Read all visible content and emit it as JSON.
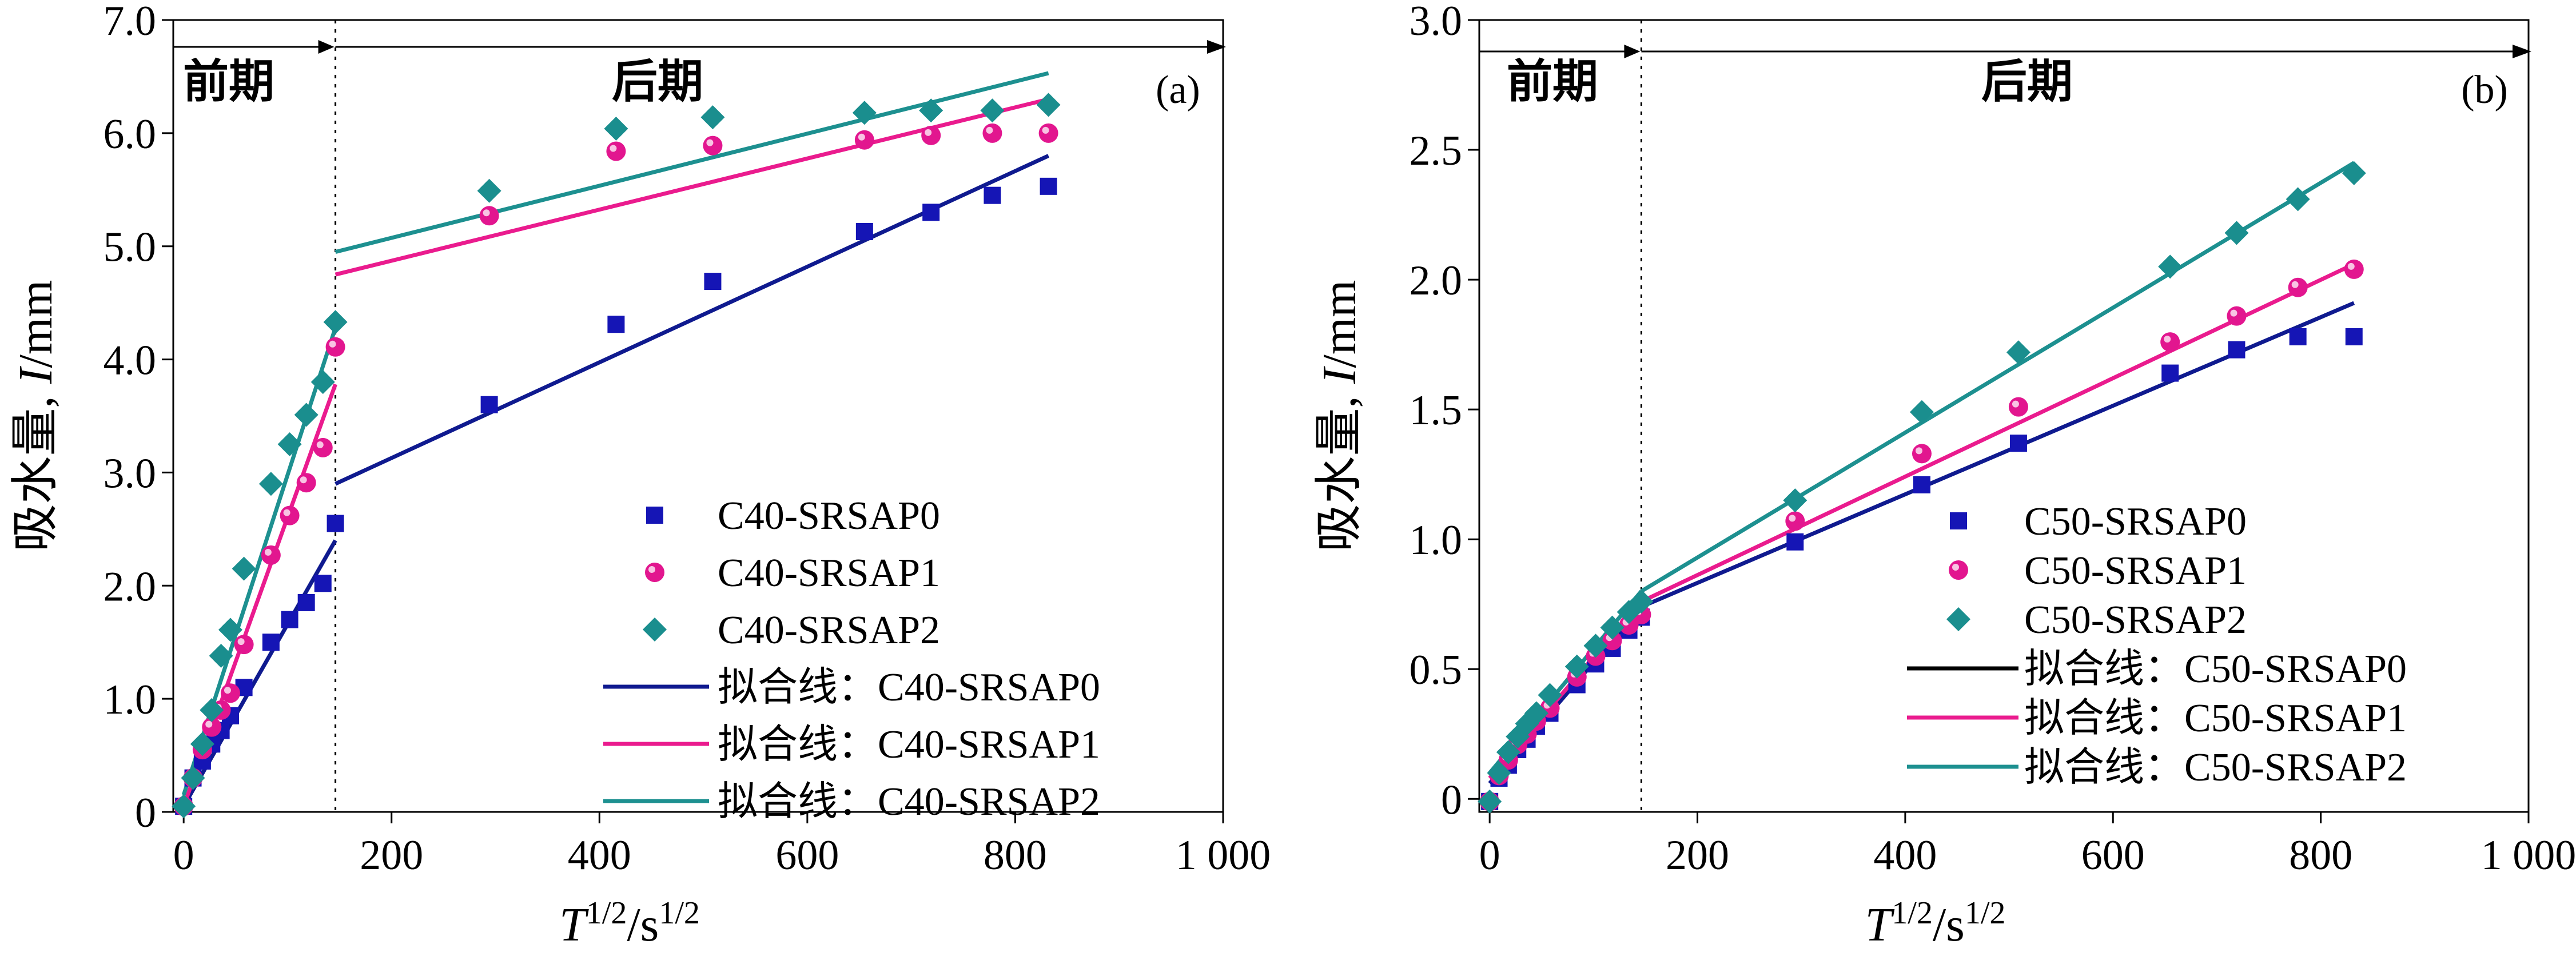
{
  "chart_data": [
    {
      "type": "scatter",
      "panel_label": "(a)",
      "xlabel": {
        "T": "T",
        "exp1": "1/2",
        "slash_s": "/s",
        "exp2": "1/2"
      },
      "ylabel": {
        "prefix": "吸水量, ",
        "var": "I",
        "unit": "/mm"
      },
      "xlim": [
        -10,
        1000
      ],
      "ylim": [
        0,
        7.0
      ],
      "xticks": [
        0,
        200,
        400,
        600,
        800,
        1000
      ],
      "xtick_labels": [
        "0",
        "200",
        "400",
        "600",
        "800",
        "1 000"
      ],
      "yticks": [
        0,
        1,
        2,
        3,
        4,
        5,
        6,
        7
      ],
      "ytick_labels": [
        "0",
        "1.0",
        "2.0",
        "3.0",
        "4.0",
        "5.0",
        "6.0",
        "7.0"
      ],
      "divider_x": 146,
      "phase_labels": {
        "early": "前期",
        "late": "后期"
      },
      "series": [
        {
          "name": "C40-SRSAP0",
          "marker": "square",
          "color": "#1515b5",
          "x": [
            0,
            9,
            18,
            27,
            36,
            45,
            58,
            84,
            102,
            118,
            134,
            146,
            294,
            416,
            509,
            655,
            719,
            778,
            832
          ],
          "y": [
            0.05,
            0.3,
            0.45,
            0.6,
            0.72,
            0.85,
            1.1,
            1.5,
            1.7,
            1.85,
            2.02,
            2.55,
            3.6,
            4.31,
            4.69,
            5.13,
            5.3,
            5.45,
            5.53
          ]
        },
        {
          "name": "C40-SRSAP1",
          "marker": "circle",
          "color": "#e2168f",
          "x": [
            0,
            9,
            18,
            27,
            36,
            45,
            58,
            84,
            102,
            118,
            134,
            146,
            294,
            416,
            509,
            655,
            719,
            778,
            832
          ],
          "y": [
            0.05,
            0.3,
            0.55,
            0.75,
            0.9,
            1.05,
            1.48,
            2.27,
            2.62,
            2.91,
            3.22,
            4.11,
            5.27,
            5.84,
            5.89,
            5.94,
            5.98,
            6.0,
            6.0
          ]
        },
        {
          "name": "C40-SRSAP2",
          "marker": "diamond",
          "color": "#1a8e8e",
          "x": [
            0,
            9,
            18,
            27,
            36,
            45,
            58,
            84,
            102,
            118,
            134,
            146,
            294,
            416,
            509,
            655,
            719,
            778,
            832
          ],
          "y": [
            0.05,
            0.3,
            0.6,
            0.9,
            1.38,
            1.61,
            2.15,
            2.9,
            3.25,
            3.51,
            3.8,
            4.33,
            5.49,
            6.04,
            6.14,
            6.18,
            6.2,
            6.2,
            6.25
          ]
        }
      ],
      "fit_lines": [
        {
          "name": "拟合线：C40-SRSAP0",
          "color": "#0f1a8f",
          "segments": [
            {
              "x": [
                0,
                146
              ],
              "y": [
                0.05,
                2.4
              ]
            },
            {
              "x": [
                146,
                832
              ],
              "y": [
                2.9,
                5.8
              ]
            }
          ]
        },
        {
          "name": "拟合线：C40-SRSAP1",
          "color": "#ea1b8e",
          "segments": [
            {
              "x": [
                0,
                146
              ],
              "y": [
                0.05,
                3.78
              ]
            },
            {
              "x": [
                146,
                832
              ],
              "y": [
                4.75,
                6.3
              ]
            }
          ]
        },
        {
          "name": "拟合线：C40-SRSAP2",
          "color": "#1d9090",
          "segments": [
            {
              "x": [
                0,
                146
              ],
              "y": [
                0.15,
                4.28
              ]
            },
            {
              "x": [
                146,
                832
              ],
              "y": [
                4.95,
                6.53
              ]
            }
          ]
        }
      ],
      "legend_position": "bottom-right"
    },
    {
      "type": "scatter",
      "panel_label": "(b)",
      "xlabel": {
        "T": "T",
        "exp1": "1/2",
        "slash_s": "/s",
        "exp2": "1/2"
      },
      "ylabel": {
        "prefix": "吸水量, ",
        "var": "I",
        "unit": "/mm"
      },
      "xlim": [
        -10,
        1000
      ],
      "ylim": [
        -0.05,
        3.0
      ],
      "xticks": [
        0,
        200,
        400,
        600,
        800,
        1000
      ],
      "xtick_labels": [
        "0",
        "200",
        "400",
        "600",
        "800",
        "1 000"
      ],
      "yticks": [
        0,
        0.5,
        1.0,
        1.5,
        2.0,
        2.5,
        3.0
      ],
      "ytick_labels": [
        "0",
        "0.5",
        "1.0",
        "1.5",
        "2.0",
        "2.5",
        "3.0"
      ],
      "divider_x": 146,
      "phase_labels": {
        "early": "前期",
        "late": "后期"
      },
      "series": [
        {
          "name": "C50-SRSAP0",
          "marker": "square",
          "color": "#1515b5",
          "x": [
            0,
            9,
            18,
            27,
            36,
            45,
            58,
            84,
            102,
            118,
            134,
            146,
            294,
            416,
            509,
            655,
            719,
            778,
            832
          ],
          "y": [
            -0.01,
            0.08,
            0.13,
            0.19,
            0.23,
            0.28,
            0.33,
            0.44,
            0.52,
            0.58,
            0.65,
            0.7,
            0.99,
            1.21,
            1.37,
            1.64,
            1.73,
            1.78,
            1.78
          ]
        },
        {
          "name": "C50-SRSAP1",
          "marker": "circle",
          "color": "#e2168f",
          "x": [
            0,
            9,
            18,
            27,
            36,
            45,
            58,
            84,
            102,
            118,
            134,
            146,
            294,
            416,
            509,
            655,
            719,
            778,
            832
          ],
          "y": [
            -0.01,
            0.09,
            0.15,
            0.21,
            0.25,
            0.3,
            0.35,
            0.47,
            0.55,
            0.61,
            0.67,
            0.71,
            1.07,
            1.33,
            1.51,
            1.76,
            1.86,
            1.97,
            2.04
          ]
        },
        {
          "name": "C50-SRSAP2",
          "marker": "diamond",
          "color": "#1a8e8e",
          "x": [
            0,
            9,
            18,
            27,
            36,
            45,
            58,
            84,
            102,
            118,
            134,
            146,
            294,
            416,
            509,
            655,
            719,
            778,
            832
          ],
          "y": [
            -0.01,
            0.1,
            0.18,
            0.24,
            0.29,
            0.33,
            0.4,
            0.51,
            0.59,
            0.66,
            0.72,
            0.76,
            1.15,
            1.49,
            1.72,
            2.05,
            2.18,
            2.31,
            2.41
          ]
        }
      ],
      "fit_lines": [
        {
          "name": "拟合线：C50-SRSAP0",
          "color": "#0f1a8f",
          "legend_color": "#000000",
          "segments": [
            {
              "x": [
                0,
                146
              ],
              "y": [
                0.06,
                0.74
              ]
            },
            {
              "x": [
                146,
                832
              ],
              "y": [
                0.74,
                1.91
              ]
            }
          ]
        },
        {
          "name": "拟合线：C50-SRSAP1",
          "color": "#ea1b8e",
          "segments": [
            {
              "x": [
                0,
                146
              ],
              "y": [
                0.08,
                0.76
              ]
            },
            {
              "x": [
                146,
                832
              ],
              "y": [
                0.76,
                2.06
              ]
            }
          ]
        },
        {
          "name": "拟合线：C50-SRSAP2",
          "color": "#1d9090",
          "segments": [
            {
              "x": [
                0,
                146
              ],
              "y": [
                0.1,
                0.8
              ]
            },
            {
              "x": [
                146,
                832
              ],
              "y": [
                0.8,
                2.45
              ]
            }
          ]
        }
      ],
      "legend_position": "bottom-right"
    }
  ]
}
